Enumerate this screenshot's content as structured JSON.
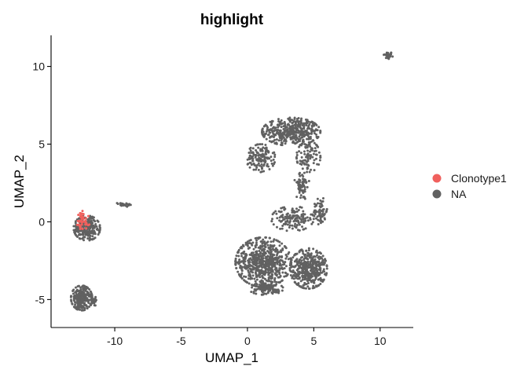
{
  "chart_data": {
    "type": "scatter",
    "title": "highlight",
    "xlabel": "UMAP_1",
    "ylabel": "UMAP_2",
    "xlim": [
      -14.8,
      12.5
    ],
    "ylim": [
      -6.8,
      12.0
    ],
    "x_ticks": [
      -10,
      -5,
      0,
      5,
      10
    ],
    "x_tick_labels": [
      "-10",
      "-5",
      "0",
      "5",
      "10"
    ],
    "y_ticks": [
      -5,
      0,
      5,
      10
    ],
    "y_tick_labels": [
      "-5",
      "0",
      "5",
      "10"
    ],
    "grid": false,
    "legend_position": "right",
    "series": [
      {
        "name": "Clonotype1",
        "color": "#F0605D",
        "clusters": [
          {
            "cx": -12.5,
            "cy": 0.0,
            "rx": 0.6,
            "ry": 0.7,
            "n": 45
          }
        ]
      },
      {
        "name": "NA",
        "color": "#616161",
        "clusters": [
          {
            "cx": 10.6,
            "cy": 10.7,
            "rx": 0.35,
            "ry": 0.25,
            "n": 35
          },
          {
            "cx": 3.3,
            "cy": 5.8,
            "rx": 2.2,
            "ry": 0.9,
            "n": 420
          },
          {
            "cx": 1.0,
            "cy": 4.1,
            "rx": 1.1,
            "ry": 0.9,
            "n": 140
          },
          {
            "cx": 4.6,
            "cy": 4.2,
            "rx": 0.9,
            "ry": 1.0,
            "n": 90
          },
          {
            "cx": 4.1,
            "cy": 2.3,
            "rx": 0.6,
            "ry": 0.9,
            "n": 60
          },
          {
            "cx": 3.4,
            "cy": 0.2,
            "rx": 1.6,
            "ry": 0.8,
            "n": 140
          },
          {
            "cx": 5.5,
            "cy": 0.7,
            "rx": 0.5,
            "ry": 0.9,
            "n": 60
          },
          {
            "cx": 1.2,
            "cy": -2.6,
            "rx": 2.1,
            "ry": 1.6,
            "n": 650
          },
          {
            "cx": 4.6,
            "cy": -3.0,
            "rx": 1.4,
            "ry": 1.3,
            "n": 420
          },
          {
            "cx": 1.4,
            "cy": -4.3,
            "rx": 1.3,
            "ry": 0.4,
            "n": 110
          },
          {
            "cx": -12.1,
            "cy": -0.4,
            "rx": 1.0,
            "ry": 0.8,
            "n": 230
          },
          {
            "cx": -9.4,
            "cy": 1.1,
            "rx": 0.6,
            "ry": 0.15,
            "n": 30
          },
          {
            "cx": -12.5,
            "cy": -4.9,
            "rx": 0.8,
            "ry": 0.8,
            "n": 230
          },
          {
            "cx": -11.6,
            "cy": -5.1,
            "rx": 0.4,
            "ry": 0.3,
            "n": 35
          }
        ]
      }
    ]
  },
  "legend": {
    "items": [
      {
        "label": "Clonotype1",
        "color": "#F0605D"
      },
      {
        "label": "NA",
        "color": "#616161"
      }
    ]
  }
}
